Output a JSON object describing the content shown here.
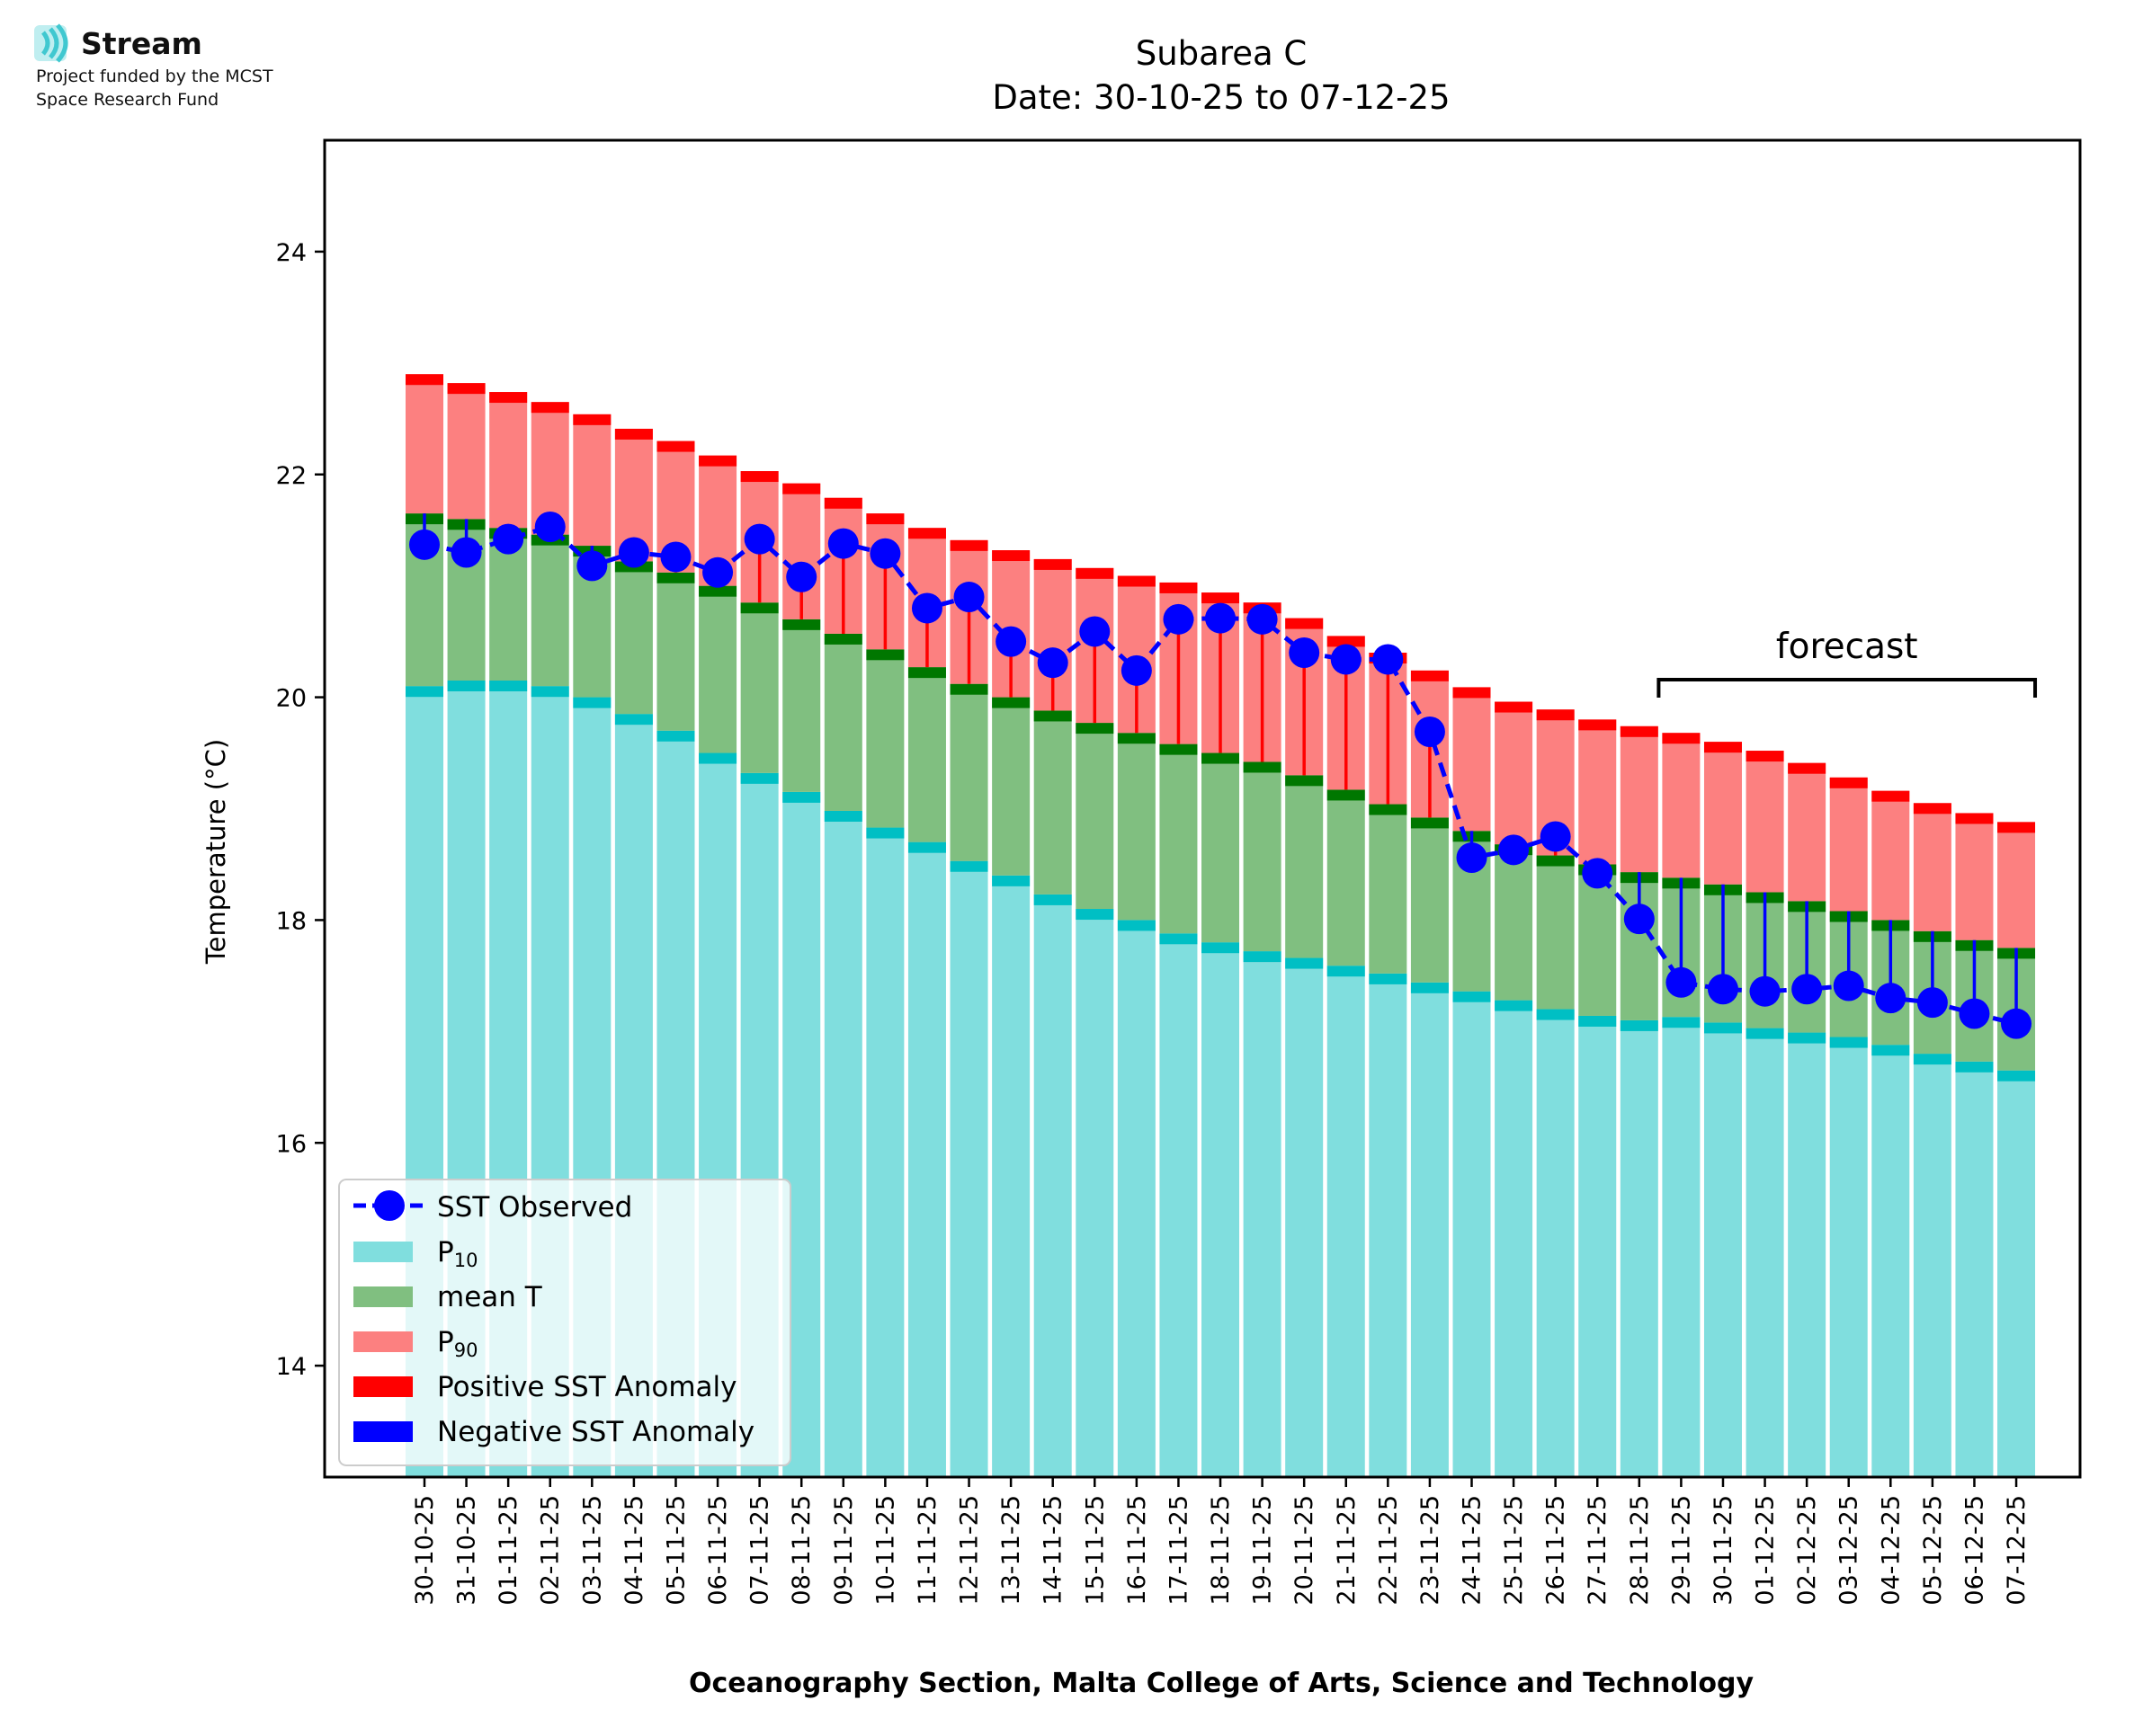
{
  "logo": {
    "name": "Stream",
    "line1": "Project funded by the MCST",
    "line2": "Space Research Fund"
  },
  "chart_data": {
    "type": "bar",
    "title_line1": "Subarea C",
    "title_line2": "Date: 30-10-25 to 07-12-25",
    "xlabel": "Oceanography Section, Malta College of Arts, Science and Technology",
    "ylabel": "Temperature (°C)",
    "ylim": [
      13.0,
      25.0
    ],
    "yticks": [
      14,
      16,
      18,
      20,
      22,
      24
    ],
    "grid": false,
    "legend_position": "lower-left",
    "categories": [
      "30-10-25",
      "31-10-25",
      "01-11-25",
      "02-11-25",
      "03-11-25",
      "04-11-25",
      "05-11-25",
      "06-11-25",
      "07-11-25",
      "08-11-25",
      "09-11-25",
      "10-11-25",
      "11-11-25",
      "12-11-25",
      "13-11-25",
      "14-11-25",
      "15-11-25",
      "16-11-25",
      "17-11-25",
      "18-11-25",
      "19-11-25",
      "20-11-25",
      "21-11-25",
      "22-11-25",
      "23-11-25",
      "24-11-25",
      "25-11-25",
      "26-11-25",
      "27-11-25",
      "28-11-25",
      "29-11-25",
      "30-11-25",
      "01-12-25",
      "02-12-25",
      "03-12-25",
      "04-12-25",
      "05-12-25",
      "06-12-25",
      "07-12-25"
    ],
    "series": [
      {
        "name": "P10",
        "color": "#80dede",
        "values": [
          20.1,
          20.15,
          20.15,
          20.1,
          20.0,
          19.85,
          19.7,
          19.5,
          19.32,
          19.15,
          18.98,
          18.83,
          18.7,
          18.53,
          18.4,
          18.23,
          18.1,
          18.0,
          17.88,
          17.8,
          17.72,
          17.66,
          17.59,
          17.52,
          17.44,
          17.36,
          17.28,
          17.2,
          17.14,
          17.1,
          17.13,
          17.08,
          17.03,
          16.99,
          16.95,
          16.88,
          16.8,
          16.73,
          16.65
        ]
      },
      {
        "name": "mean T",
        "color": "#80bf80",
        "values": [
          21.65,
          21.6,
          21.52,
          21.46,
          21.36,
          21.22,
          21.12,
          21.0,
          20.85,
          20.7,
          20.57,
          20.43,
          20.27,
          20.12,
          20.0,
          19.88,
          19.77,
          19.68,
          19.58,
          19.5,
          19.42,
          19.3,
          19.17,
          19.04,
          18.92,
          18.8,
          18.68,
          18.58,
          18.5,
          18.43,
          18.38,
          18.32,
          18.25,
          18.17,
          18.08,
          18.0,
          17.9,
          17.82,
          17.75
        ]
      },
      {
        "name": "P90",
        "color": "#fc8080",
        "values": [
          22.9,
          22.82,
          22.74,
          22.65,
          22.54,
          22.41,
          22.3,
          22.17,
          22.03,
          21.92,
          21.79,
          21.65,
          21.52,
          21.41,
          21.32,
          21.24,
          21.16,
          21.09,
          21.03,
          20.94,
          20.85,
          20.71,
          20.55,
          20.4,
          20.24,
          20.09,
          19.96,
          19.89,
          19.8,
          19.74,
          19.68,
          19.6,
          19.52,
          19.41,
          19.28,
          19.16,
          19.05,
          18.96,
          18.88
        ]
      }
    ],
    "sst_observed": [
      21.37,
      21.3,
      21.42,
      21.53,
      21.18,
      21.3,
      21.26,
      21.12,
      21.42,
      21.08,
      21.38,
      21.29,
      20.8,
      20.9,
      20.5,
      20.31,
      20.59,
      20.24,
      20.7,
      20.71,
      20.7,
      20.4,
      20.34,
      20.34,
      19.69,
      18.56,
      18.63,
      18.75,
      18.42,
      18.01,
      17.44,
      17.38,
      17.36,
      17.38,
      17.41,
      17.3,
      17.26,
      17.16,
      17.07
    ],
    "observed_color": "#0000ff",
    "positive_anomaly_color": "#ff0000",
    "negative_anomaly_color": "#0000ff",
    "forecast_label": "forecast",
    "forecast_range": [
      "29-11-25",
      "07-12-25"
    ],
    "legend": {
      "observed": "SST Observed",
      "p10_main": "P",
      "p10_sub": "10",
      "mean": "mean T",
      "p90_main": "P",
      "p90_sub": "90",
      "positive": "Positive SST Anomaly",
      "negative": "Negative SST Anomaly"
    }
  }
}
